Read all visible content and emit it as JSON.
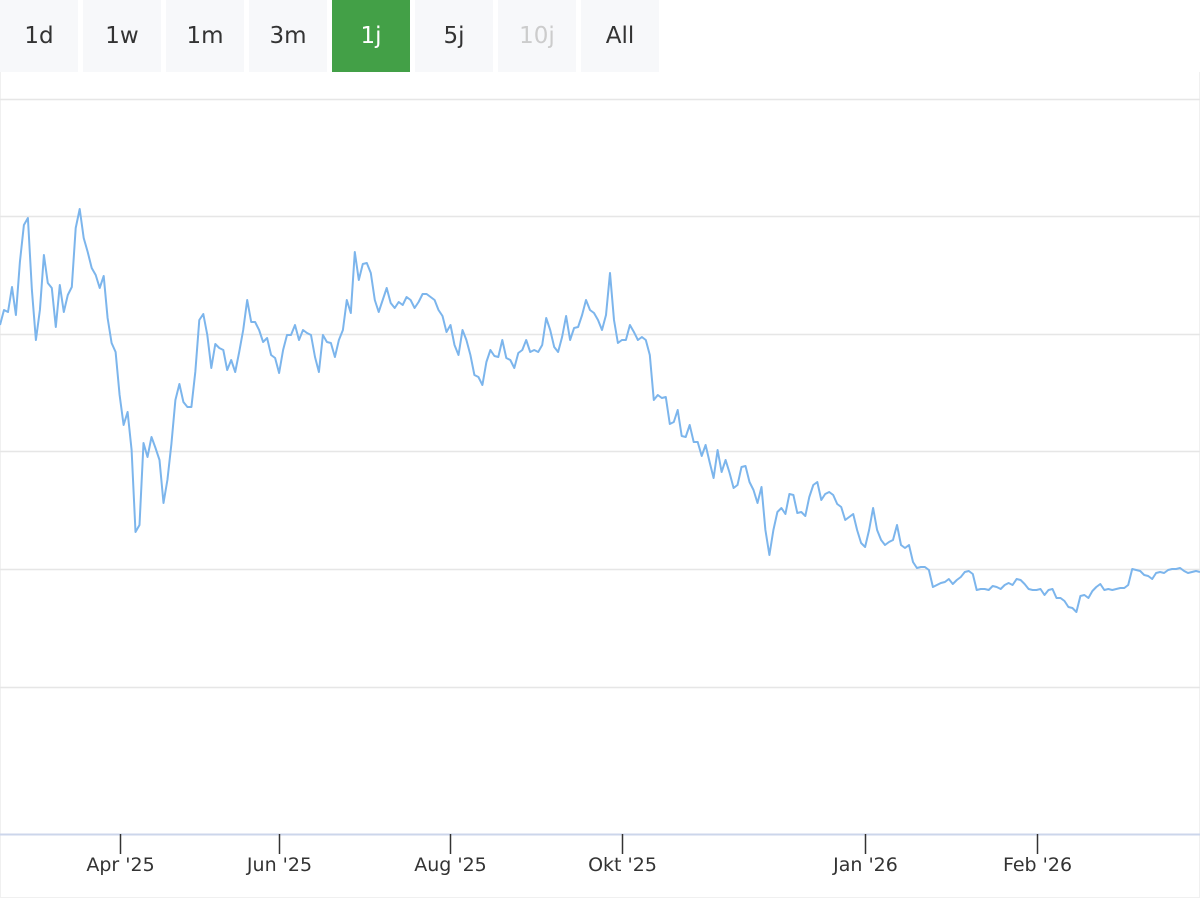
{
  "range_selector": {
    "buttons": [
      {
        "label": "1d",
        "state": "normal"
      },
      {
        "label": "1w",
        "state": "normal"
      },
      {
        "label": "1m",
        "state": "normal"
      },
      {
        "label": "3m",
        "state": "normal"
      },
      {
        "label": "1j",
        "state": "active"
      },
      {
        "label": "5j",
        "state": "normal"
      },
      {
        "label": "10j",
        "state": "disabled"
      },
      {
        "label": "All",
        "state": "normal"
      }
    ]
  },
  "colors": {
    "line": "#7cb5ec",
    "active_button": "#43a047",
    "grid": "#e6e6e6",
    "axis": "#ccd6eb"
  },
  "chart_data": {
    "type": "line",
    "title": "",
    "xlabel": "",
    "ylabel": "",
    "grid": true,
    "legend": "none",
    "ylim": [
      0,
      735
    ],
    "y_gridlines": [
      735,
      618,
      500,
      383,
      265,
      147
    ],
    "x_ticks": [
      {
        "index": 30,
        "label": "Apr '25"
      },
      {
        "index": 70,
        "label": "Jun '25"
      },
      {
        "index": 113,
        "label": "Aug '25"
      },
      {
        "index": 156,
        "label": "Okt '25"
      },
      {
        "index": 217,
        "label": "Jan '26"
      },
      {
        "index": 260,
        "label": "Feb '26"
      }
    ],
    "series": [
      {
        "values": [
          509,
          524,
          522,
          547,
          519,
          572,
          609,
          616,
          544,
          494,
          524,
          579,
          551,
          546,
          507,
          549,
          522,
          539,
          547,
          606,
          625,
          596,
          582,
          566,
          559,
          546,
          558,
          516,
          491,
          482,
          439,
          409,
          422,
          384,
          302,
          309,
          391,
          377,
          397,
          386,
          374,
          331,
          354,
          390,
          434,
          450,
          432,
          427,
          427,
          462,
          514,
          520,
          499,
          466,
          490,
          486,
          484,
          464,
          474,
          462,
          482,
          504,
          534,
          512,
          512,
          504,
          492,
          496,
          479,
          476,
          461,
          484,
          499,
          499,
          509,
          494,
          504,
          501,
          499,
          477,
          462,
          499,
          492,
          491,
          477,
          494,
          504,
          534,
          521,
          582,
          554,
          570,
          571,
          561,
          534,
          522,
          534,
          546,
          531,
          526,
          532,
          529,
          537,
          534,
          526,
          532,
          540,
          540,
          537,
          534,
          524,
          518,
          502,
          509,
          489,
          479,
          504,
          494,
          479,
          459,
          457,
          449,
          472,
          484,
          478,
          477,
          494,
          476,
          474,
          466,
          481,
          484,
          494,
          482,
          484,
          482,
          489,
          516,
          504,
          487,
          482,
          497,
          518,
          494,
          506,
          507,
          519,
          534,
          524,
          521,
          514,
          504,
          519,
          561,
          514,
          491,
          494,
          494,
          509,
          502,
          494,
          497,
          494,
          479,
          434,
          439,
          436,
          437,
          410,
          412,
          424,
          398,
          397,
          409,
          392,
          392,
          378,
          389,
          372,
          356,
          384,
          362,
          374,
          361,
          346,
          349,
          367,
          368,
          352,
          344,
          331,
          347,
          304,
          279,
          304,
          322,
          326,
          320,
          340,
          339,
          321,
          322,
          318,
          337,
          349,
          352,
          334,
          340,
          342,
          339,
          330,
          327,
          314,
          317,
          320,
          304,
          291,
          287,
          304,
          326,
          304,
          294,
          289,
          292,
          294,
          309,
          289,
          286,
          289,
          272,
          266,
          267,
          267,
          264,
          247,
          249,
          251,
          252,
          255,
          250,
          254,
          257,
          262,
          263,
          260,
          244,
          245,
          245,
          244,
          248,
          247,
          245,
          249,
          251,
          249,
          255,
          254,
          250,
          245,
          244,
          244,
          245,
          239,
          244,
          245,
          236,
          236,
          233,
          227,
          226,
          222,
          238,
          239,
          236,
          243,
          247,
          250,
          244,
          245,
          244,
          245,
          246,
          246,
          249,
          265,
          264,
          263,
          259,
          258,
          255,
          261,
          262,
          261,
          264,
          265,
          265,
          266,
          263,
          261,
          262,
          263,
          262
        ]
      }
    ]
  }
}
